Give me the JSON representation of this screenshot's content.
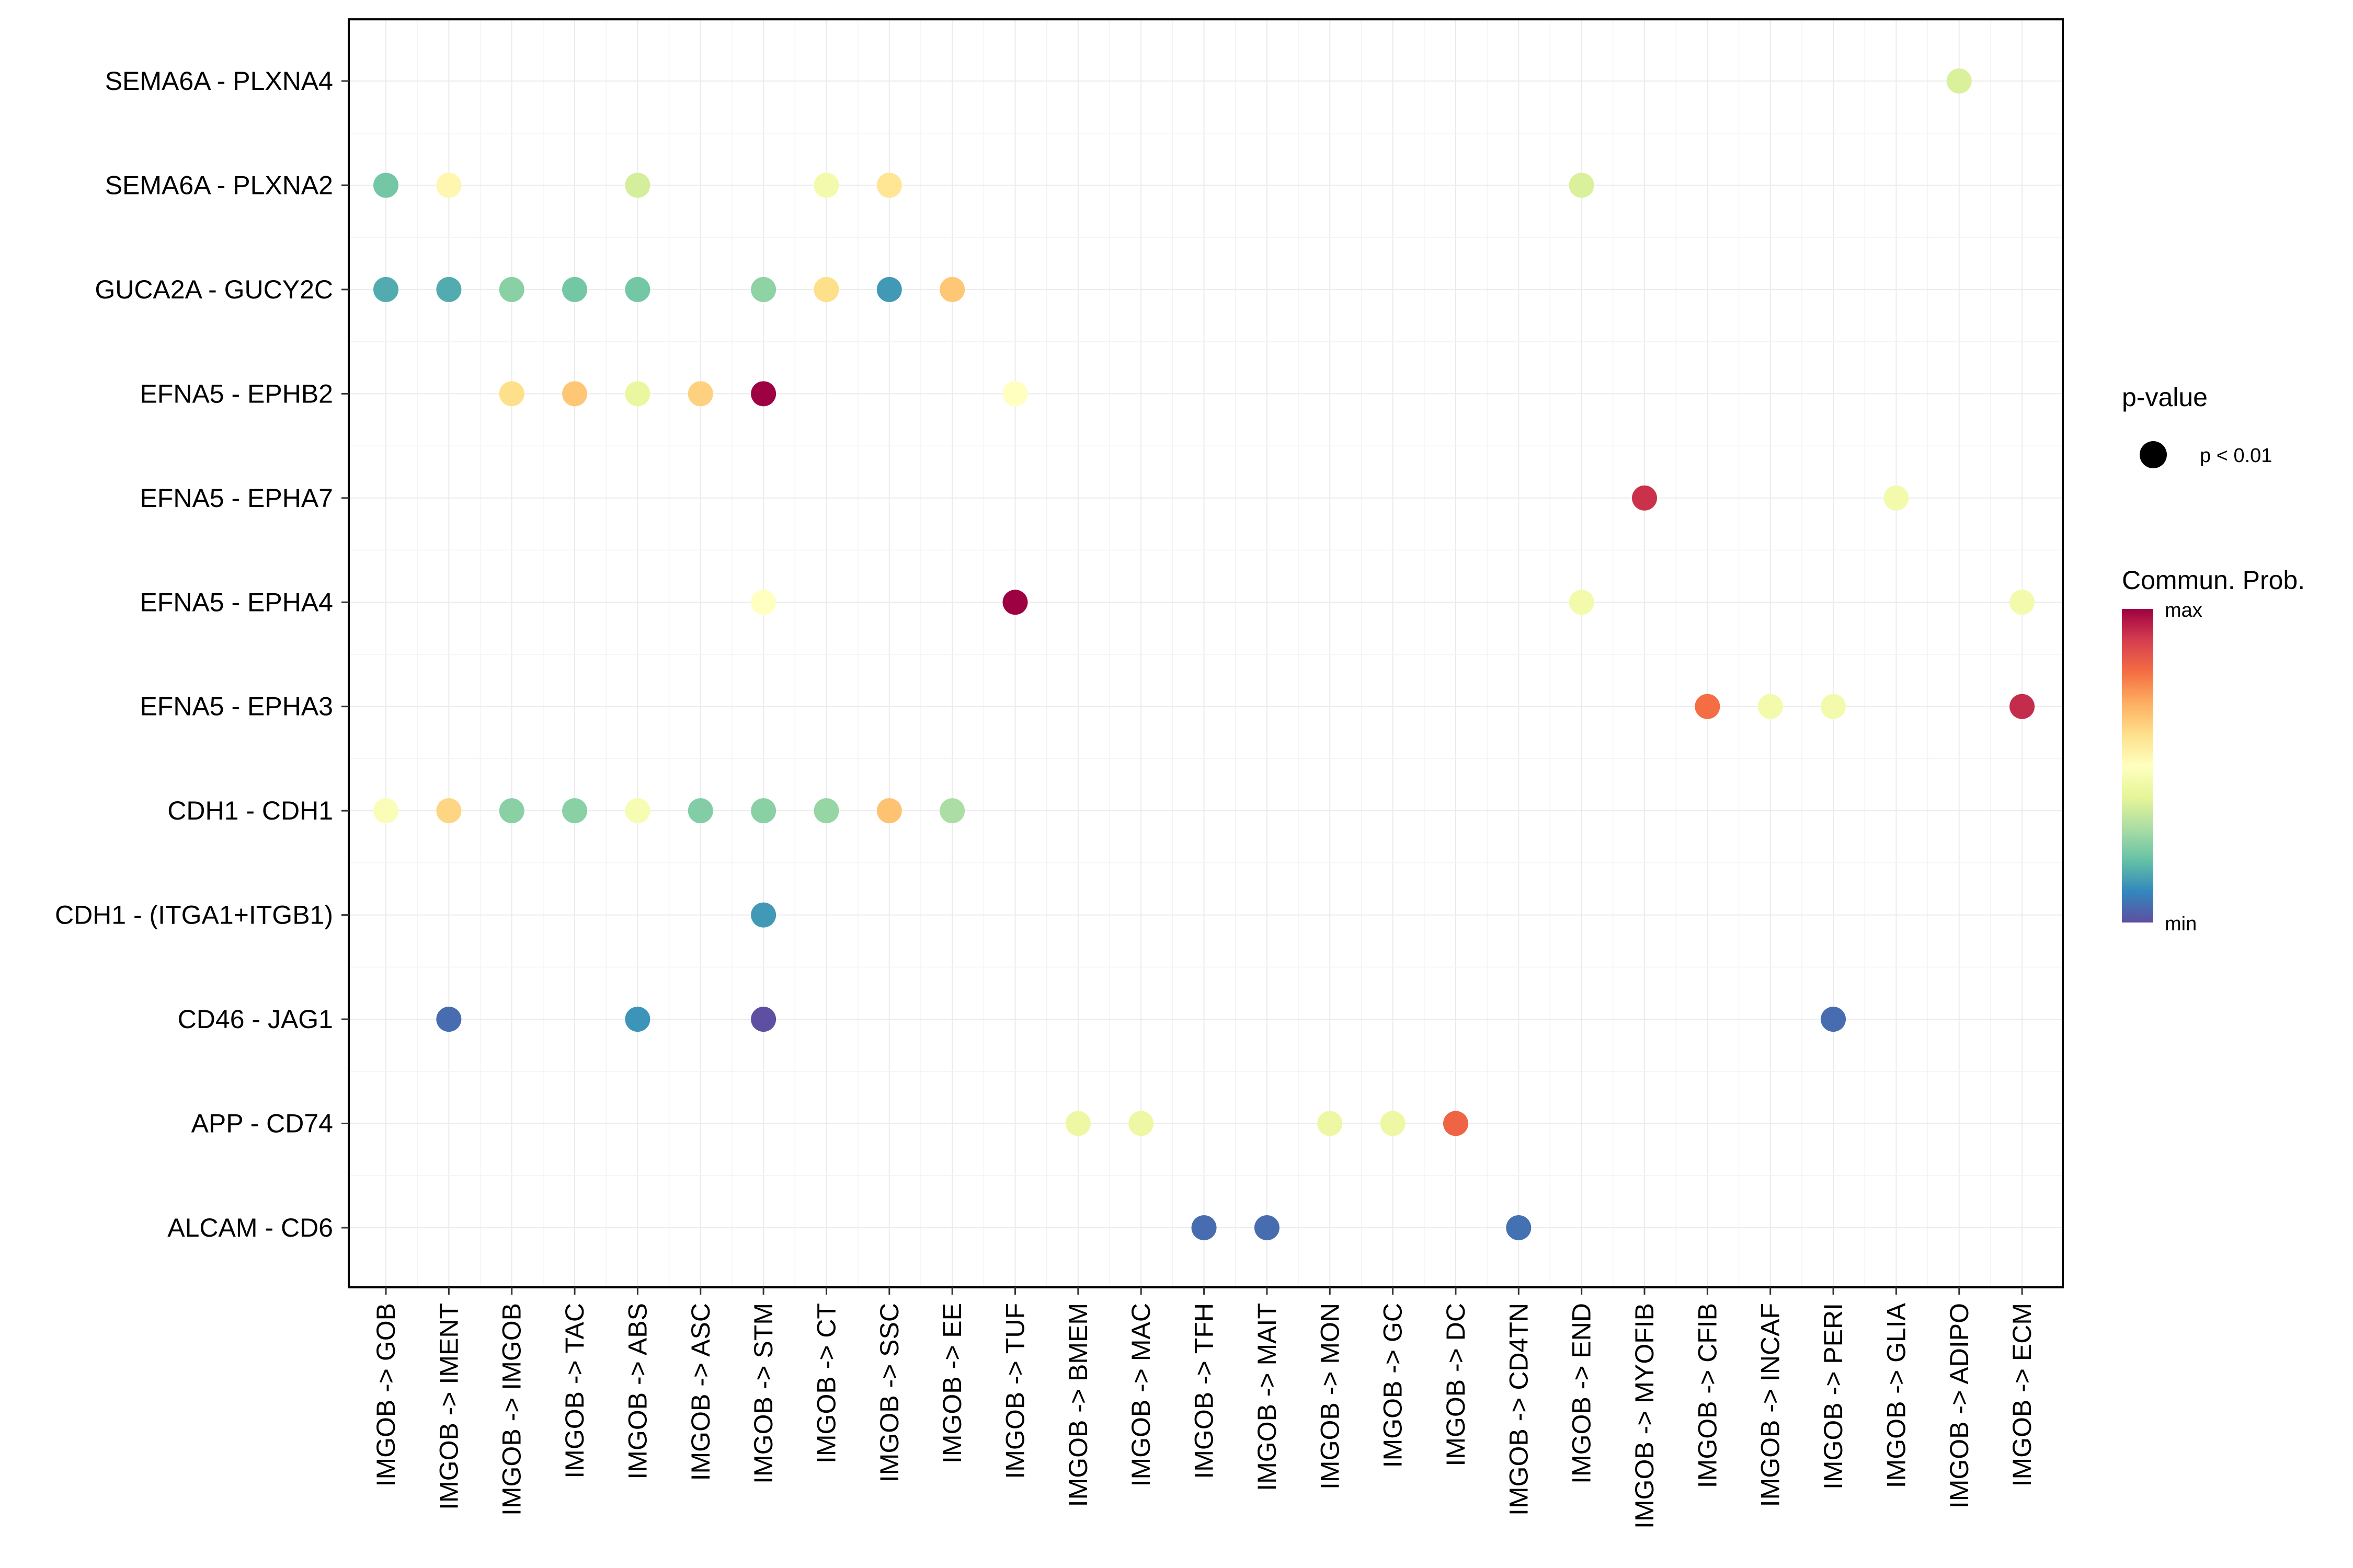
{
  "chart_data": {
    "type": "scatter",
    "subtype": "bubble-dot-matrix",
    "title": "",
    "xlabel": "",
    "ylabel": "",
    "x_categories": [
      "IMGOB -> GOB",
      "IMGOB -> IMENT",
      "IMGOB -> IMGOB",
      "IMGOB -> TAC",
      "IMGOB -> ABS",
      "IMGOB -> ASC",
      "IMGOB -> STM",
      "IMGOB -> CT",
      "IMGOB -> SSC",
      "IMGOB -> EE",
      "IMGOB -> TUF",
      "IMGOB -> BMEM",
      "IMGOB -> MAC",
      "IMGOB -> TFH",
      "IMGOB -> MAIT",
      "IMGOB -> MON",
      "IMGOB -> GC",
      "IMGOB -> DC",
      "IMGOB -> CD4TN",
      "IMGOB -> END",
      "IMGOB -> MYOFIB",
      "IMGOB -> CFIB",
      "IMGOB -> INCAF",
      "IMGOB -> PERI",
      "IMGOB -> GLIA",
      "IMGOB -> ADIPO",
      "IMGOB -> ECM"
    ],
    "y_categories": [
      "SEMA6A - PLXNA4",
      "SEMA6A - PLXNA2",
      "GUCA2A - GUCY2C",
      "EFNA5 - EPHB2",
      "EFNA5 - EPHA7",
      "EFNA5 - EPHA4",
      "EFNA5 - EPHA3",
      "CDH1 - CDH1",
      "CDH1 - (ITGA1+ITGB1)",
      "CD46 - JAG1",
      "APP - CD74",
      "ALCAM - CD6"
    ],
    "value_scale": "normalized 0 (min) to 1 (max) communication probability",
    "points": [
      {
        "y": "SEMA6A - PLXNA4",
        "x": "IMGOB -> ADIPO",
        "value": 0.38
      },
      {
        "y": "SEMA6A - PLXNA2",
        "x": "IMGOB -> GOB",
        "value": 0.22
      },
      {
        "y": "SEMA6A - PLXNA2",
        "x": "IMGOB -> IMENT",
        "value": 0.53
      },
      {
        "y": "SEMA6A - PLXNA2",
        "x": "IMGOB -> ABS",
        "value": 0.37
      },
      {
        "y": "SEMA6A - PLXNA2",
        "x": "IMGOB -> CT",
        "value": 0.45
      },
      {
        "y": "SEMA6A - PLXNA2",
        "x": "IMGOB -> SSC",
        "value": 0.58
      },
      {
        "y": "SEMA6A - PLXNA2",
        "x": "IMGOB -> END",
        "value": 0.38
      },
      {
        "y": "GUCA2A - GUCY2C",
        "x": "IMGOB -> GOB",
        "value": 0.16
      },
      {
        "y": "GUCA2A - GUCY2C",
        "x": "IMGOB -> IMENT",
        "value": 0.16
      },
      {
        "y": "GUCA2A - GUCY2C",
        "x": "IMGOB -> IMGOB",
        "value": 0.25
      },
      {
        "y": "GUCA2A - GUCY2C",
        "x": "IMGOB -> TAC",
        "value": 0.22
      },
      {
        "y": "GUCA2A - GUCY2C",
        "x": "IMGOB -> ABS",
        "value": 0.22
      },
      {
        "y": "GUCA2A - GUCY2C",
        "x": "IMGOB -> STM",
        "value": 0.26
      },
      {
        "y": "GUCA2A - GUCY2C",
        "x": "IMGOB -> CT",
        "value": 0.6
      },
      {
        "y": "GUCA2A - GUCY2C",
        "x": "IMGOB -> SSC",
        "value": 0.13
      },
      {
        "y": "GUCA2A - GUCY2C",
        "x": "IMGOB -> EE",
        "value": 0.65
      },
      {
        "y": "EFNA5 - EPHB2",
        "x": "IMGOB -> IMGOB",
        "value": 0.6
      },
      {
        "y": "EFNA5 - EPHB2",
        "x": "IMGOB -> TAC",
        "value": 0.65
      },
      {
        "y": "EFNA5 - EPHB2",
        "x": "IMGOB -> ABS",
        "value": 0.42
      },
      {
        "y": "EFNA5 - EPHB2",
        "x": "IMGOB -> ASC",
        "value": 0.63
      },
      {
        "y": "EFNA5 - EPHB2",
        "x": "IMGOB -> STM",
        "value": 1.0
      },
      {
        "y": "EFNA5 - EPHB2",
        "x": "IMGOB -> TUF",
        "value": 0.5
      },
      {
        "y": "EFNA5 - EPHA7",
        "x": "IMGOB -> MYOFIB",
        "value": 0.92
      },
      {
        "y": "EFNA5 - EPHA7",
        "x": "IMGOB -> GLIA",
        "value": 0.45
      },
      {
        "y": "EFNA5 - EPHA4",
        "x": "IMGOB -> STM",
        "value": 0.5
      },
      {
        "y": "EFNA5 - EPHA4",
        "x": "IMGOB -> TUF",
        "value": 1.0
      },
      {
        "y": "EFNA5 - EPHA4",
        "x": "IMGOB -> END",
        "value": 0.45
      },
      {
        "y": "EFNA5 - EPHA4",
        "x": "IMGOB -> ECM",
        "value": 0.45
      },
      {
        "y": "EFNA5 - EPHA3",
        "x": "IMGOB -> CFIB",
        "value": 0.8
      },
      {
        "y": "EFNA5 - EPHA3",
        "x": "IMGOB -> INCAF",
        "value": 0.45
      },
      {
        "y": "EFNA5 - EPHA3",
        "x": "IMGOB -> PERI",
        "value": 0.45
      },
      {
        "y": "EFNA5 - EPHA3",
        "x": "IMGOB -> ECM",
        "value": 0.93
      },
      {
        "y": "CDH1 - CDH1",
        "x": "IMGOB -> GOB",
        "value": 0.48
      },
      {
        "y": "CDH1 - CDH1",
        "x": "IMGOB -> IMENT",
        "value": 0.62
      },
      {
        "y": "CDH1 - CDH1",
        "x": "IMGOB -> IMGOB",
        "value": 0.25
      },
      {
        "y": "CDH1 - CDH1",
        "x": "IMGOB -> TAC",
        "value": 0.25
      },
      {
        "y": "CDH1 - CDH1",
        "x": "IMGOB -> ABS",
        "value": 0.47
      },
      {
        "y": "CDH1 - CDH1",
        "x": "IMGOB -> ASC",
        "value": 0.24
      },
      {
        "y": "CDH1 - CDH1",
        "x": "IMGOB -> STM",
        "value": 0.25
      },
      {
        "y": "CDH1 - CDH1",
        "x": "IMGOB -> CT",
        "value": 0.27
      },
      {
        "y": "CDH1 - CDH1",
        "x": "IMGOB -> SSC",
        "value": 0.66
      },
      {
        "y": "CDH1 - CDH1",
        "x": "IMGOB -> EE",
        "value": 0.3
      },
      {
        "y": "CDH1 - (ITGA1+ITGB1)",
        "x": "IMGOB -> STM",
        "value": 0.13
      },
      {
        "y": "CD46 - JAG1",
        "x": "IMGOB -> IMENT",
        "value": 0.05
      },
      {
        "y": "CD46 - JAG1",
        "x": "IMGOB -> ABS",
        "value": 0.12
      },
      {
        "y": "CD46 - JAG1",
        "x": "IMGOB -> STM",
        "value": 0.0
      },
      {
        "y": "CD46 - JAG1",
        "x": "IMGOB -> PERI",
        "value": 0.05
      },
      {
        "y": "APP - CD74",
        "x": "IMGOB -> BMEM",
        "value": 0.43
      },
      {
        "y": "APP - CD74",
        "x": "IMGOB -> MAC",
        "value": 0.43
      },
      {
        "y": "APP - CD74",
        "x": "IMGOB -> MON",
        "value": 0.43
      },
      {
        "y": "APP - CD74",
        "x": "IMGOB -> GC",
        "value": 0.43
      },
      {
        "y": "APP - CD74",
        "x": "IMGOB -> DC",
        "value": 0.82
      },
      {
        "y": "ALCAM - CD6",
        "x": "IMGOB -> TFH",
        "value": 0.05
      },
      {
        "y": "ALCAM - CD6",
        "x": "IMGOB -> MAIT",
        "value": 0.05
      },
      {
        "y": "ALCAM - CD6",
        "x": "IMGOB -> CD4TN",
        "value": 0.06
      }
    ],
    "grid": true,
    "legend": {
      "position": "right",
      "size_title": "p-value",
      "size_label": "p < 0.01",
      "color_title": "Commun. Prob.",
      "color_max_label": "max",
      "color_min_label": "min",
      "colors": [
        "#5E4FA2",
        "#3288BD",
        "#66C2A5",
        "#ABDDA4",
        "#E6F598",
        "#FFFFBF",
        "#FEE08B",
        "#FDAE61",
        "#F46D43",
        "#D53E4F",
        "#9E0142"
      ]
    }
  }
}
